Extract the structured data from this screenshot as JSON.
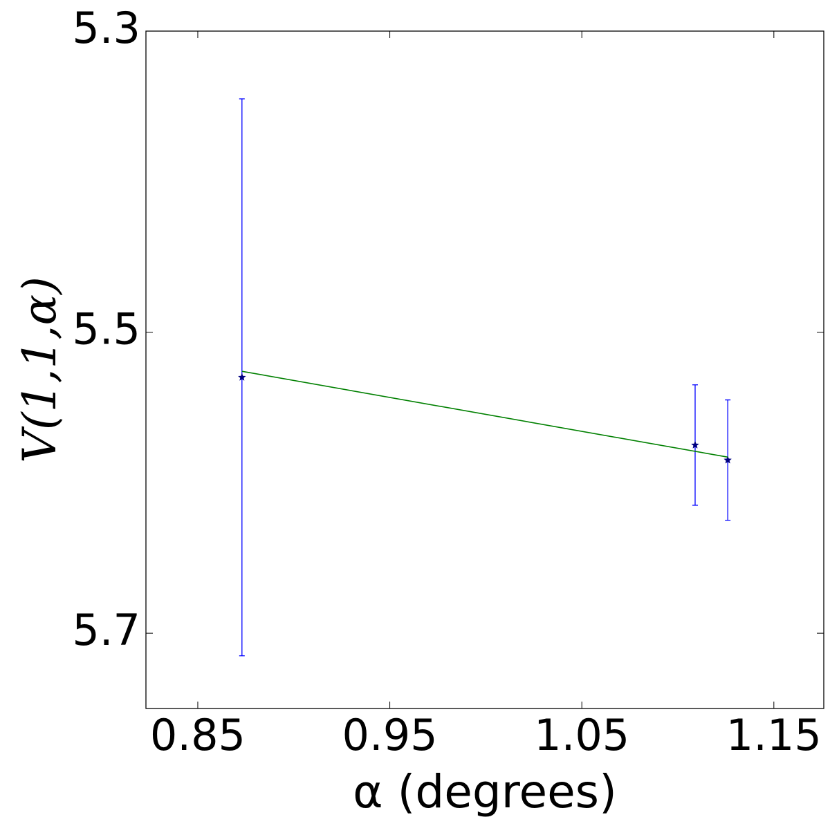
{
  "chart_data": {
    "type": "errorbar",
    "x_label": "α (degrees)",
    "y_label": "V(1,1,α)",
    "xlim": [
      0.823,
      1.176
    ],
    "ylim": [
      5.3,
      5.75
    ],
    "y_inverted": true,
    "xticks": [
      0.85,
      0.95,
      1.05,
      1.15
    ],
    "yticks": [
      5.3,
      5.5,
      5.7
    ],
    "series": [
      {
        "style": "errorbar",
        "color": "#0000ff",
        "marker_color": "#000080",
        "x": [
          0.873,
          1.109,
          1.126
        ],
        "values": [
          5.53,
          5.575,
          5.585
        ],
        "errors": [
          0.185,
          0.04,
          0.04
        ]
      },
      {
        "style": "line",
        "color": "#008000",
        "x": [
          0.873,
          1.126
        ],
        "values": [
          5.526,
          5.583
        ]
      }
    ]
  }
}
